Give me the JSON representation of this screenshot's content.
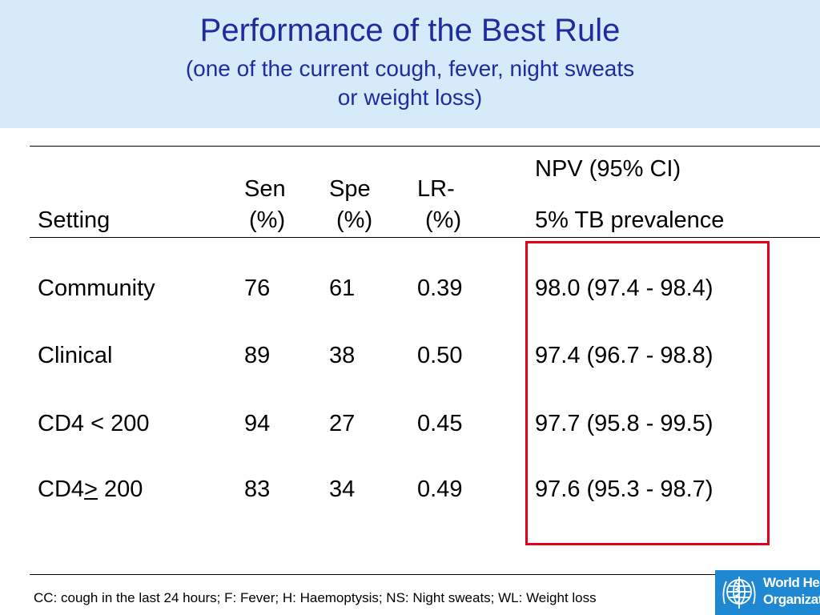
{
  "slide": {
    "title": "Performance of the Best Rule",
    "subtitle_line1": "(one of the current cough, fever, night sweats",
    "subtitle_line2": "or weight loss)"
  },
  "table": {
    "headers": {
      "setting": "Setting",
      "sen_top": "Sen",
      "sen_bottom": "(%)",
      "spe_top": "Spe",
      "spe_bottom": "(%)",
      "lr_top": "LR-",
      "lr_bottom": "(%)",
      "npv_top": "NPV (95% CI)",
      "npv_bottom": "5% TB prevalence"
    },
    "rows": [
      {
        "setting": "Community",
        "sen": "76",
        "spe": "61",
        "lr": "0.39",
        "npv": "98.0 (97.4 - 98.4)"
      },
      {
        "setting": "Clinical",
        "sen": "89",
        "spe": "38",
        "lr": "0.50",
        "npv": "97.4 (96.7 - 98.8)"
      },
      {
        "setting": "CD4 < 200",
        "sen": "94",
        "spe": "27",
        "lr": "0.45",
        "npv": "97.7 (95.8 - 99.5)"
      },
      {
        "setting_prefix": "CD4",
        "setting_symbol": ">",
        "setting_suffix": " 200",
        "sen": "83",
        "spe": "34",
        "lr": "0.49",
        "npv": "97.6 (95.3 - 98.7)"
      }
    ]
  },
  "footnote": "CC: cough in the last 24 hours; F: Fever; H: Haemoptysis; NS: Night sweats; WL: Weight loss",
  "logo": {
    "icon": "who-emblem-icon",
    "line1": "World Health",
    "line2": "Organization",
    "color": "#1e88d2"
  },
  "colors": {
    "title": "#1f2c9e",
    "title_band": "#d6ebfa",
    "highlight_box": "#e3001b"
  }
}
